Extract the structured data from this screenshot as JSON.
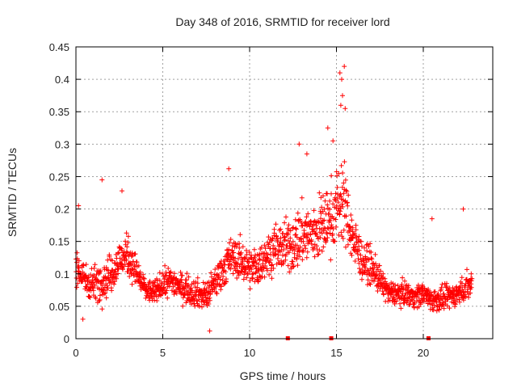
{
  "chart_data": {
    "type": "scatter",
    "title": "Day 348 of 2016, SRMTID for receiver lord",
    "xlabel": "GPS time / hours",
    "ylabel": "SRMTID / TECUs",
    "xlim": [
      0,
      24
    ],
    "ylim": [
      0,
      0.45
    ],
    "x_ticks": [
      0,
      5,
      10,
      15,
      20
    ],
    "x_tick_labels": [
      "0",
      "5",
      "10",
      "15",
      "20"
    ],
    "y_ticks": [
      0,
      0.05,
      0.1,
      0.15,
      0.2,
      0.25,
      0.3,
      0.35,
      0.4,
      0.45
    ],
    "y_tick_labels": [
      "0",
      "0.05",
      "0.1",
      "0.15",
      "0.2",
      "0.25",
      "0.3",
      "0.35",
      "0.4",
      "0.45"
    ],
    "grid": true,
    "marker": "+",
    "color": "#ff0000",
    "data_gap_markers_x": [
      12.2,
      14.7,
      20.3
    ],
    "series": [
      {
        "name": "SRMTID",
        "envelope": {
          "x": [
            0.0,
            0.5,
            1.0,
            1.5,
            2.0,
            2.5,
            3.0,
            3.5,
            4.0,
            4.5,
            5.0,
            5.5,
            6.0,
            6.5,
            7.0,
            7.5,
            8.0,
            8.5,
            9.0,
            9.5,
            10.0,
            10.5,
            11.0,
            11.5,
            12.0,
            12.5,
            13.0,
            13.5,
            14.0,
            14.5,
            15.0,
            15.3,
            15.6,
            16.0,
            16.5,
            17.0,
            17.5,
            18.0,
            18.5,
            19.0,
            19.5,
            20.0,
            20.5,
            21.0,
            21.5,
            22.0,
            22.5,
            23.0
          ],
          "mean": [
            0.11,
            0.09,
            0.085,
            0.09,
            0.1,
            0.12,
            0.13,
            0.1,
            0.075,
            0.07,
            0.085,
            0.09,
            0.08,
            0.075,
            0.07,
            0.065,
            0.085,
            0.11,
            0.125,
            0.12,
            0.11,
            0.11,
            0.13,
            0.14,
            0.14,
            0.145,
            0.16,
            0.16,
            0.17,
            0.18,
            0.2,
            0.22,
            0.19,
            0.15,
            0.12,
            0.11,
            0.09,
            0.07,
            0.07,
            0.07,
            0.065,
            0.07,
            0.06,
            0.06,
            0.065,
            0.07,
            0.08,
            0.09
          ],
          "spread": [
            0.035,
            0.03,
            0.03,
            0.035,
            0.035,
            0.035,
            0.035,
            0.03,
            0.02,
            0.02,
            0.025,
            0.025,
            0.025,
            0.025,
            0.025,
            0.025,
            0.03,
            0.035,
            0.035,
            0.035,
            0.035,
            0.035,
            0.035,
            0.04,
            0.045,
            0.05,
            0.055,
            0.055,
            0.06,
            0.06,
            0.07,
            0.08,
            0.06,
            0.045,
            0.035,
            0.03,
            0.025,
            0.02,
            0.02,
            0.02,
            0.02,
            0.02,
            0.02,
            0.02,
            0.02,
            0.02,
            0.025,
            0.03
          ]
        },
        "n_points": 1700,
        "x_range": [
          0,
          22.8
        ]
      }
    ],
    "notable_points": [
      {
        "x": 15.2,
        "y": 0.41
      },
      {
        "x": 15.45,
        "y": 0.42
      },
      {
        "x": 15.3,
        "y": 0.4
      },
      {
        "x": 15.35,
        "y": 0.375
      },
      {
        "x": 15.5,
        "y": 0.355
      },
      {
        "x": 15.25,
        "y": 0.36
      },
      {
        "x": 14.5,
        "y": 0.325
      },
      {
        "x": 14.8,
        "y": 0.305
      },
      {
        "x": 12.85,
        "y": 0.3
      },
      {
        "x": 13.3,
        "y": 0.285
      },
      {
        "x": 8.8,
        "y": 0.262
      },
      {
        "x": 1.5,
        "y": 0.245
      },
      {
        "x": 2.65,
        "y": 0.228
      },
      {
        "x": 0.15,
        "y": 0.205
      },
      {
        "x": 20.5,
        "y": 0.185
      },
      {
        "x": 22.3,
        "y": 0.2
      },
      {
        "x": 7.7,
        "y": 0.012
      },
      {
        "x": 0.4,
        "y": 0.03
      }
    ]
  }
}
